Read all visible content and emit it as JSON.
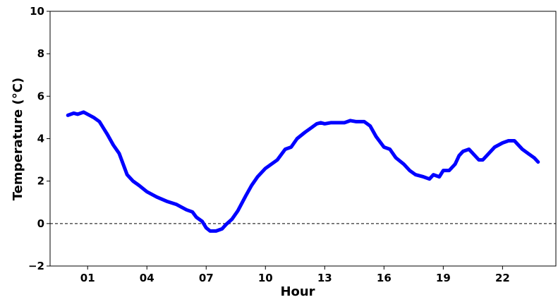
{
  "chart_data": {
    "type": "line",
    "title": "",
    "xlabel": "Hour",
    "ylabel": "Temperature (°C)",
    "xlim": [
      -0.9,
      24.7
    ],
    "ylim": [
      -2,
      10
    ],
    "xticks": [
      {
        "value": 1,
        "label": "01"
      },
      {
        "value": 4,
        "label": "04"
      },
      {
        "value": 7,
        "label": "07"
      },
      {
        "value": 10,
        "label": "10"
      },
      {
        "value": 13,
        "label": "13"
      },
      {
        "value": 16,
        "label": "16"
      },
      {
        "value": 19,
        "label": "19"
      },
      {
        "value": 22,
        "label": "22"
      }
    ],
    "yticks": [
      {
        "value": -2,
        "label": "−2"
      },
      {
        "value": 0,
        "label": "0"
      },
      {
        "value": 2,
        "label": "2"
      },
      {
        "value": 4,
        "label": "4"
      },
      {
        "value": 6,
        "label": "6"
      },
      {
        "value": 8,
        "label": "8"
      },
      {
        "value": 10,
        "label": "10"
      }
    ],
    "grid": false,
    "reference_line": {
      "y": 0,
      "style": "dashed",
      "color": "#000000"
    },
    "series": [
      {
        "color": "#0000ff",
        "x": [
          0.0,
          0.3,
          0.5,
          0.8,
          1.0,
          1.3,
          1.6,
          1.8,
          2.0,
          2.3,
          2.6,
          2.8,
          3.0,
          3.3,
          3.6,
          4.0,
          4.5,
          5.0,
          5.5,
          6.0,
          6.3,
          6.5,
          6.8,
          7.0,
          7.2,
          7.5,
          7.8,
          8.0,
          8.3,
          8.6,
          9.0,
          9.3,
          9.6,
          10.0,
          10.3,
          10.6,
          11.0,
          11.3,
          11.6,
          12.0,
          12.3,
          12.6,
          12.8,
          13.0,
          13.3,
          13.6,
          14.0,
          14.3,
          14.6,
          15.0,
          15.3,
          15.6,
          16.0,
          16.3,
          16.6,
          17.0,
          17.3,
          17.6,
          18.0,
          18.3,
          18.5,
          18.8,
          19.0,
          19.3,
          19.6,
          19.8,
          20.0,
          20.3,
          20.6,
          20.8,
          21.0,
          21.3,
          21.6,
          22.0,
          22.3,
          22.6,
          23.0,
          23.3,
          23.6,
          23.8
        ],
        "values": [
          5.1,
          5.2,
          5.15,
          5.25,
          5.15,
          5.0,
          4.8,
          4.5,
          4.2,
          3.7,
          3.3,
          2.8,
          2.3,
          2.0,
          1.8,
          1.5,
          1.25,
          1.05,
          0.9,
          0.65,
          0.55,
          0.3,
          0.1,
          -0.2,
          -0.35,
          -0.35,
          -0.25,
          -0.05,
          0.2,
          0.6,
          1.3,
          1.8,
          2.2,
          2.6,
          2.8,
          3.0,
          3.5,
          3.6,
          4.0,
          4.3,
          4.5,
          4.7,
          4.75,
          4.7,
          4.75,
          4.75,
          4.75,
          4.85,
          4.8,
          4.8,
          4.6,
          4.1,
          3.6,
          3.5,
          3.1,
          2.8,
          2.5,
          2.3,
          2.2,
          2.1,
          2.3,
          2.2,
          2.5,
          2.5,
          2.8,
          3.2,
          3.4,
          3.5,
          3.2,
          3.0,
          3.0,
          3.3,
          3.6,
          3.8,
          3.9,
          3.9,
          3.5,
          3.3,
          3.1,
          2.9
        ]
      }
    ]
  }
}
